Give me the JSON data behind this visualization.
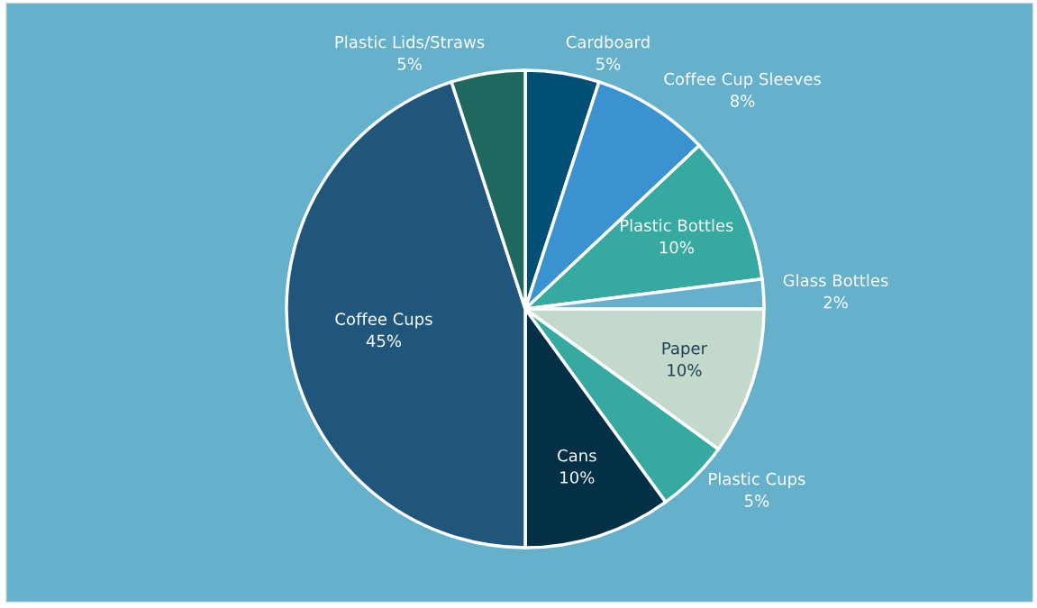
{
  "chart_data": {
    "type": "pie",
    "categories": [
      "Cardboard",
      "Coffee Cup Sleeves",
      "Plastic Bottles",
      "Glass Bottles",
      "Paper",
      "Plastic Cups",
      "Cans",
      "Coffee Cups",
      "Plastic Lids/Straws"
    ],
    "values": [
      5,
      8,
      10,
      2,
      10,
      5,
      10,
      45,
      5
    ],
    "value_labels": [
      "5%",
      "8%",
      "10%",
      "2%",
      "10%",
      "5%",
      "10%",
      "45%",
      "5%"
    ],
    "colors": [
      "#024f75",
      "#3a93d0",
      "#36a9a0",
      "#65b0ca",
      "#c2d9cc",
      "#36a9a0",
      "#032f47",
      "#20567b",
      "#1e6860"
    ]
  }
}
